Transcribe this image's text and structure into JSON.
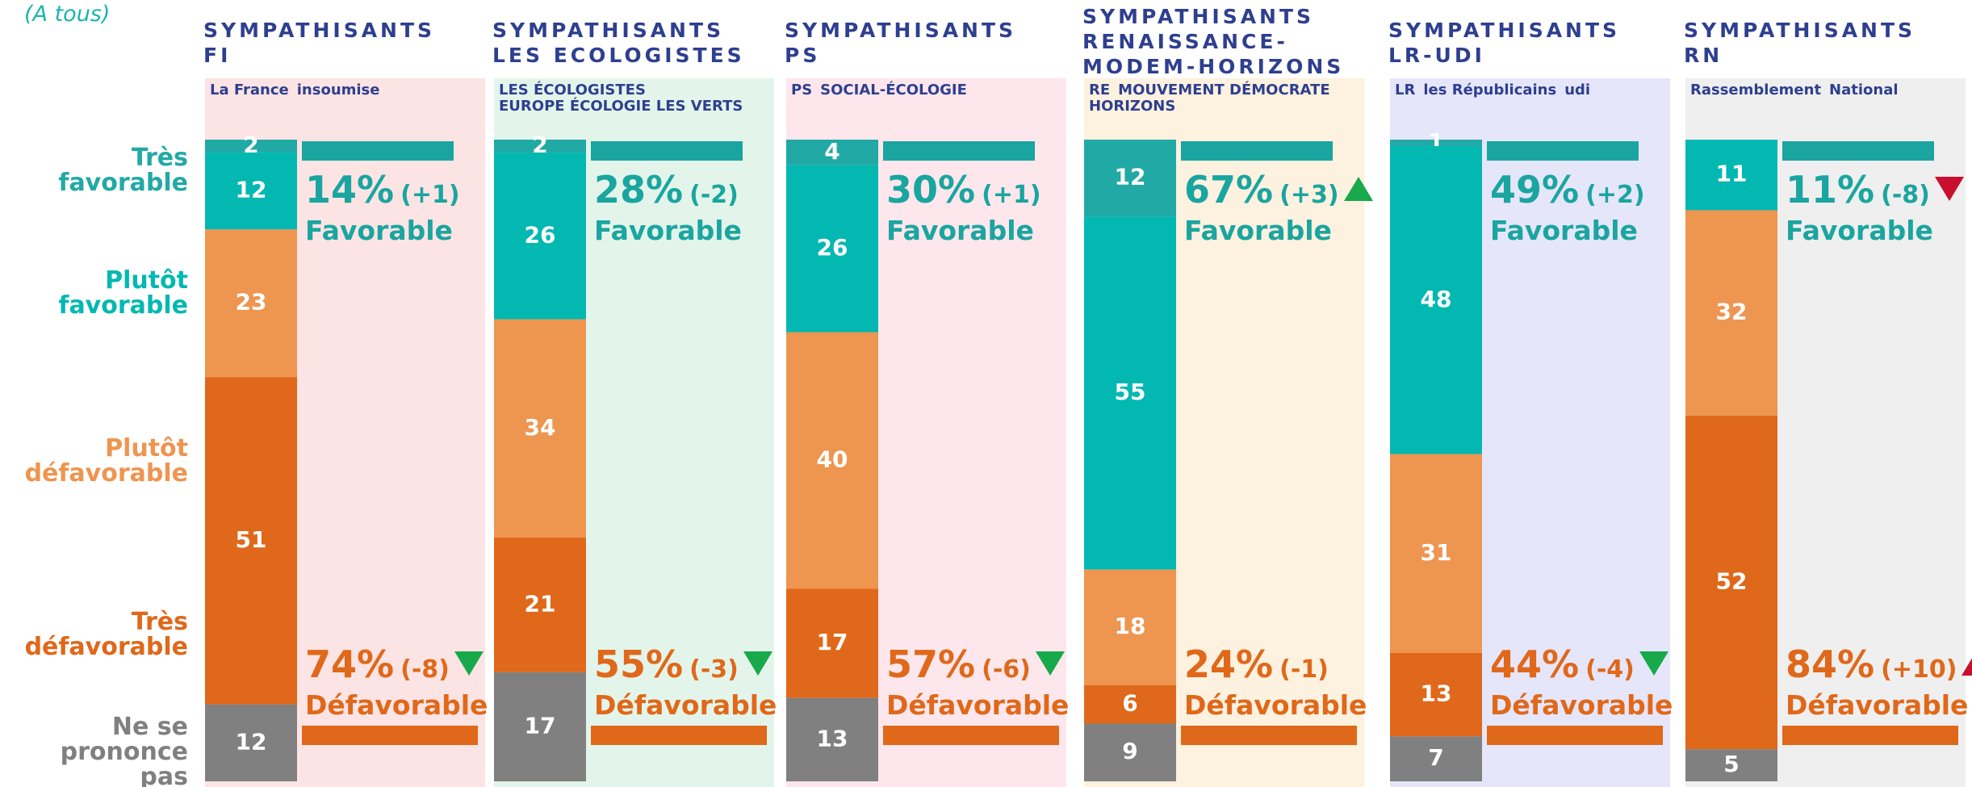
{
  "chart_data": {
    "type": "stacked-column",
    "subtitle": "(A tous)",
    "categories": [
      [
        "SYMPATHISANTS",
        "FI"
      ],
      [
        "SYMPATHISANTS",
        "LES ECOLOGISTES"
      ],
      [
        "SYMPATHISANTS",
        "PS"
      ],
      [
        "SYMPATHISANTS",
        "RENAISSANCE-",
        "MODEM-HORIZONS"
      ],
      [
        "SYMPATHISANTS",
        "LR-UDI"
      ],
      [
        "SYMPATHISANTS",
        "RN"
      ]
    ],
    "logos": [
      [
        "La France",
        "insoumise"
      ],
      [
        "LES ÉCOLOGISTES",
        "EUROPE ÉCOLOGIE LES VERTS"
      ],
      [
        "PS",
        "SOCIAL-ÉCOLOGIE"
      ],
      [
        "RE",
        "MOUVEMENT DÉMOCRATE",
        "HORIZONS"
      ],
      [
        "LR",
        "les Républicains",
        "udi"
      ],
      [
        "Rassemblement",
        "National"
      ]
    ],
    "panel_colors": [
      "#fde4e4",
      "#e3f5ea",
      "#fde7ec",
      "#fdf1df",
      "#e6e6fa",
      "#efefef"
    ],
    "series": [
      {
        "name": "Très favorable",
        "color": "#21a9a5",
        "values": [
          2,
          2,
          4,
          12,
          1,
          null
        ]
      },
      {
        "name": "Plutôt favorable",
        "color": "#04b8b2",
        "values": [
          12,
          26,
          26,
          55,
          48,
          11
        ]
      },
      {
        "name": "Plutôt défavorable",
        "color": "#ee9550",
        "values": [
          23,
          34,
          40,
          18,
          31,
          32
        ]
      },
      {
        "name": "Très défavorable",
        "color": "#e0681a",
        "values": [
          51,
          21,
          17,
          6,
          13,
          52
        ]
      },
      {
        "name": "Ne se prononce pas",
        "color": "#808080",
        "values": [
          12,
          17,
          13,
          9,
          7,
          5
        ]
      }
    ],
    "ylim": [
      0,
      100
    ],
    "favorable": {
      "label": "Favorable",
      "color": "#1aa5a0",
      "values": [
        14,
        28,
        30,
        67,
        49,
        11
      ],
      "value_labels": [
        "14%",
        "28%",
        "30%",
        "67%",
        "49%",
        "11%"
      ],
      "changes": [
        "(+1)",
        "(-2)",
        "(+1)",
        "(+3)",
        "(+2)",
        "(-8)"
      ],
      "arrows": [
        null,
        null,
        null,
        "up",
        null,
        "down"
      ],
      "arrow_colors": [
        null,
        null,
        null,
        "#18a94b",
        null,
        "#c8102e"
      ]
    },
    "defavorable": {
      "label": "Défavorable",
      "color": "#e0681a",
      "values": [
        74,
        55,
        57,
        24,
        44,
        84
      ],
      "value_labels": [
        "74%",
        "55%",
        "57%",
        "24%",
        "44%",
        "84%"
      ],
      "changes": [
        "(-8)",
        "(-3)",
        "(-6)",
        "(-1)",
        "(-4)",
        "(+10)"
      ],
      "arrows": [
        "down",
        "down",
        "down",
        null,
        "down",
        "up"
      ],
      "arrow_colors": [
        "#18a94b",
        "#18a94b",
        "#18a94b",
        null,
        "#18a94b",
        "#c8102e"
      ]
    }
  }
}
